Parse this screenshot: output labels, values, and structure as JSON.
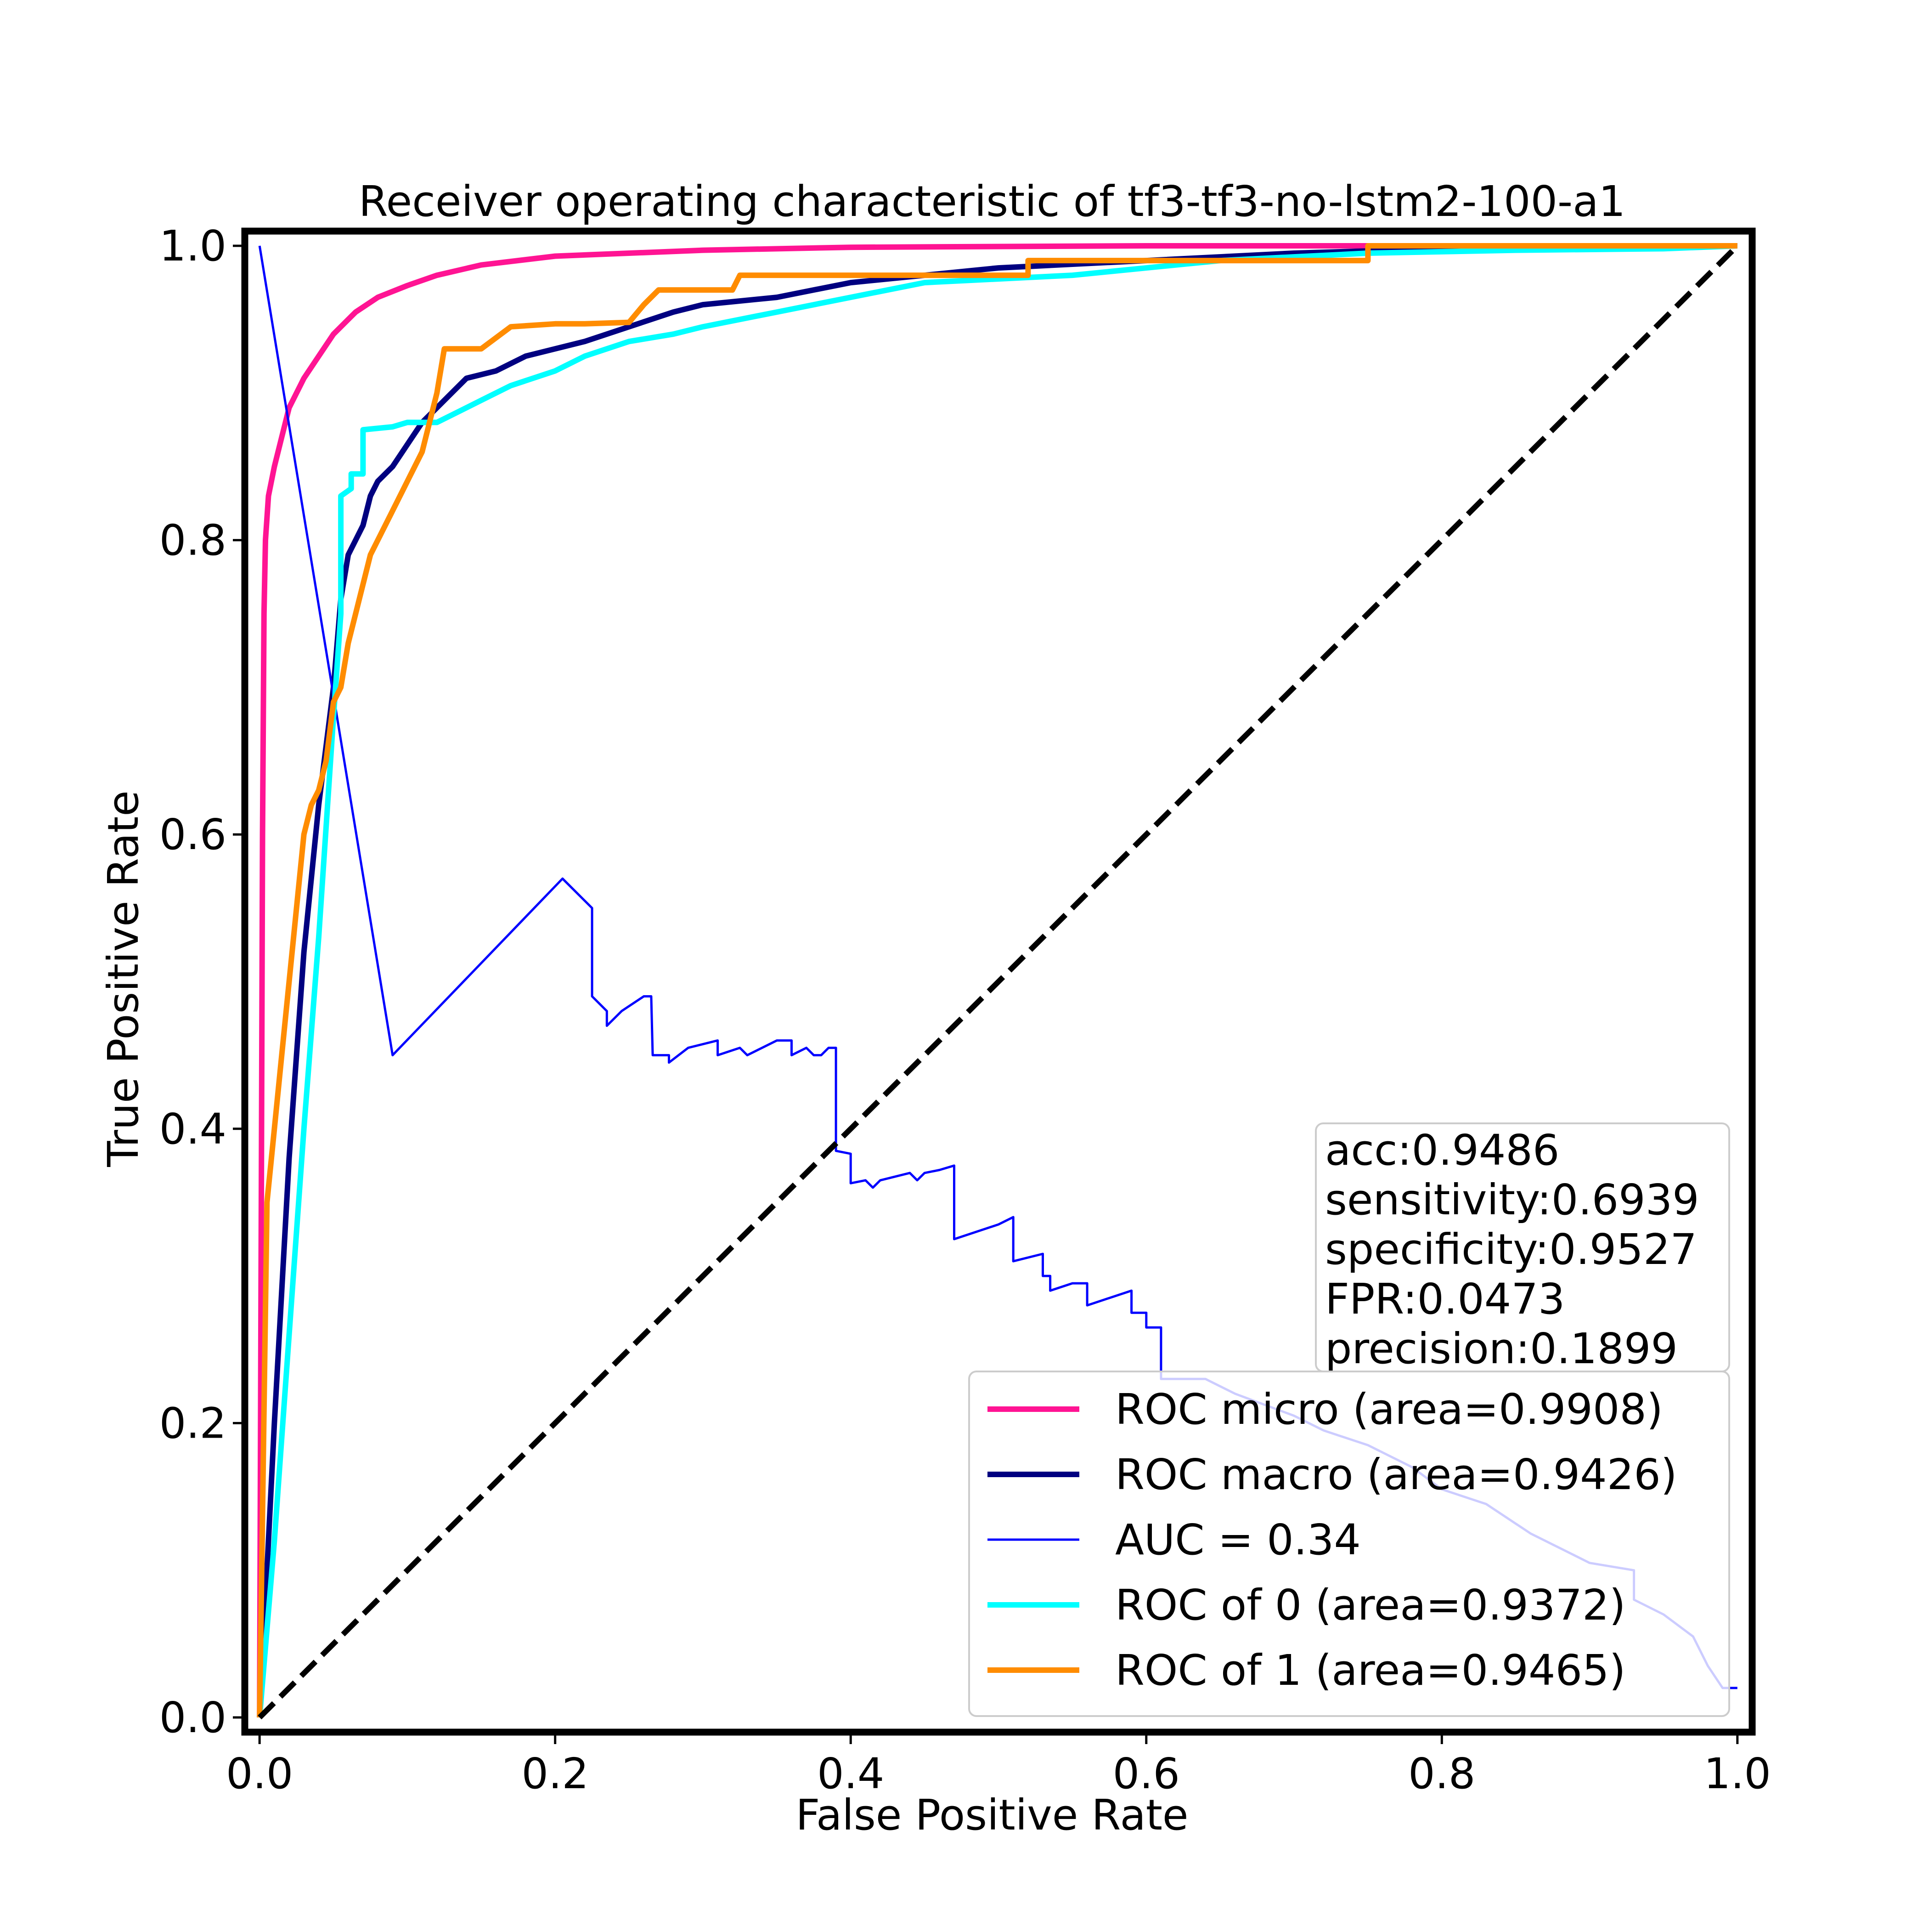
{
  "chart_data": {
    "type": "line",
    "title": "Receiver operating characteristic of tf3-tf3-no-lstm2-100-a1",
    "xlabel": "False Positive Rate",
    "ylabel": "True Positive Rate",
    "xlim": [
      -0.01,
      1.01
    ],
    "ylim": [
      -0.01,
      1.01
    ],
    "xticks": [
      {
        "value": 0.0,
        "label": "0.0"
      },
      {
        "value": 0.2,
        "label": "0.2"
      },
      {
        "value": 0.4,
        "label": "0.4"
      },
      {
        "value": 0.6,
        "label": "0.6"
      },
      {
        "value": 0.8,
        "label": "0.8"
      },
      {
        "value": 1.0,
        "label": "1.0"
      }
    ],
    "yticks": [
      {
        "value": 0.0,
        "label": "0.0"
      },
      {
        "value": 0.2,
        "label": "0.2"
      },
      {
        "value": 0.4,
        "label": "0.4"
      },
      {
        "value": 0.6,
        "label": "0.6"
      },
      {
        "value": 0.8,
        "label": "0.8"
      },
      {
        "value": 1.0,
        "label": "1.0"
      }
    ],
    "grid": false,
    "legend_position": "lower-right",
    "series": [
      {
        "name": "ROC micro (area=0.9908)",
        "color": "#ff1493",
        "style": "thick",
        "points": [
          [
            0,
            0
          ],
          [
            0.001,
            0.3
          ],
          [
            0.002,
            0.6
          ],
          [
            0.003,
            0.75
          ],
          [
            0.004,
            0.8
          ],
          [
            0.006,
            0.83
          ],
          [
            0.01,
            0.85
          ],
          [
            0.015,
            0.87
          ],
          [
            0.02,
            0.89
          ],
          [
            0.03,
            0.91
          ],
          [
            0.04,
            0.925
          ],
          [
            0.05,
            0.94
          ],
          [
            0.065,
            0.955
          ],
          [
            0.08,
            0.965
          ],
          [
            0.1,
            0.973
          ],
          [
            0.12,
            0.98
          ],
          [
            0.15,
            0.987
          ],
          [
            0.2,
            0.993
          ],
          [
            0.3,
            0.997
          ],
          [
            0.4,
            0.999
          ],
          [
            0.6,
            1.0
          ],
          [
            1.0,
            1.0
          ]
        ]
      },
      {
        "name": "ROC macro (area=0.9426)",
        "color": "#000080",
        "style": "thick",
        "points": [
          [
            0,
            0
          ],
          [
            0.01,
            0.2
          ],
          [
            0.02,
            0.38
          ],
          [
            0.03,
            0.52
          ],
          [
            0.04,
            0.62
          ],
          [
            0.05,
            0.7
          ],
          [
            0.055,
            0.76
          ],
          [
            0.06,
            0.79
          ],
          [
            0.07,
            0.81
          ],
          [
            0.075,
            0.83
          ],
          [
            0.08,
            0.84
          ],
          [
            0.09,
            0.85
          ],
          [
            0.1,
            0.865
          ],
          [
            0.11,
            0.88
          ],
          [
            0.12,
            0.89
          ],
          [
            0.13,
            0.9
          ],
          [
            0.14,
            0.91
          ],
          [
            0.16,
            0.915
          ],
          [
            0.18,
            0.925
          ],
          [
            0.2,
            0.93
          ],
          [
            0.22,
            0.935
          ],
          [
            0.25,
            0.945
          ],
          [
            0.28,
            0.955
          ],
          [
            0.3,
            0.96
          ],
          [
            0.35,
            0.965
          ],
          [
            0.4,
            0.975
          ],
          [
            0.5,
            0.985
          ],
          [
            0.6,
            0.99
          ],
          [
            0.7,
            0.995
          ],
          [
            0.8,
            0.998
          ],
          [
            1.0,
            1.0
          ]
        ]
      },
      {
        "name": "AUC = 0.34",
        "color": "#0000ff",
        "style": "thin",
        "points": [
          [
            0.0,
            1.0
          ],
          [
            0.09,
            0.45
          ],
          [
            0.205,
            0.57
          ],
          [
            0.225,
            0.55
          ],
          [
            0.225,
            0.49
          ],
          [
            0.235,
            0.48
          ],
          [
            0.235,
            0.47
          ],
          [
            0.245,
            0.48
          ],
          [
            0.26,
            0.49
          ],
          [
            0.265,
            0.49
          ],
          [
            0.266,
            0.45
          ],
          [
            0.277,
            0.45
          ],
          [
            0.277,
            0.445
          ],
          [
            0.29,
            0.455
          ],
          [
            0.31,
            0.46
          ],
          [
            0.31,
            0.45
          ],
          [
            0.325,
            0.455
          ],
          [
            0.33,
            0.45
          ],
          [
            0.34,
            0.455
          ],
          [
            0.35,
            0.46
          ],
          [
            0.36,
            0.46
          ],
          [
            0.36,
            0.45
          ],
          [
            0.37,
            0.455
          ],
          [
            0.375,
            0.45
          ],
          [
            0.38,
            0.45
          ],
          [
            0.385,
            0.455
          ],
          [
            0.39,
            0.455
          ],
          [
            0.39,
            0.385
          ],
          [
            0.4,
            0.383
          ],
          [
            0.4,
            0.363
          ],
          [
            0.41,
            0.365
          ],
          [
            0.415,
            0.36
          ],
          [
            0.42,
            0.365
          ],
          [
            0.44,
            0.37
          ],
          [
            0.445,
            0.365
          ],
          [
            0.45,
            0.37
          ],
          [
            0.46,
            0.372
          ],
          [
            0.47,
            0.375
          ],
          [
            0.47,
            0.325
          ],
          [
            0.5,
            0.335
          ],
          [
            0.51,
            0.34
          ],
          [
            0.51,
            0.31
          ],
          [
            0.53,
            0.315
          ],
          [
            0.53,
            0.3
          ],
          [
            0.535,
            0.3
          ],
          [
            0.535,
            0.29
          ],
          [
            0.55,
            0.295
          ],
          [
            0.56,
            0.295
          ],
          [
            0.56,
            0.28
          ],
          [
            0.59,
            0.29
          ],
          [
            0.59,
            0.275
          ],
          [
            0.6,
            0.275
          ],
          [
            0.6,
            0.265
          ],
          [
            0.61,
            0.265
          ],
          [
            0.61,
            0.23
          ],
          [
            0.64,
            0.23
          ],
          [
            0.66,
            0.22
          ],
          [
            0.7,
            0.205
          ],
          [
            0.72,
            0.195
          ],
          [
            0.75,
            0.185
          ],
          [
            0.78,
            0.17
          ],
          [
            0.8,
            0.155
          ],
          [
            0.83,
            0.145
          ],
          [
            0.86,
            0.125
          ],
          [
            0.88,
            0.115
          ],
          [
            0.9,
            0.105
          ],
          [
            0.93,
            0.1
          ],
          [
            0.93,
            0.08
          ],
          [
            0.95,
            0.07
          ],
          [
            0.97,
            0.055
          ],
          [
            0.98,
            0.035
          ],
          [
            0.99,
            0.02
          ],
          [
            1.0,
            0.02
          ]
        ]
      },
      {
        "name": "ROC of 0 (area=0.9372)",
        "color": "#00ffff",
        "style": "thick",
        "points": [
          [
            0,
            0
          ],
          [
            0.01,
            0.12
          ],
          [
            0.02,
            0.26
          ],
          [
            0.03,
            0.4
          ],
          [
            0.04,
            0.53
          ],
          [
            0.05,
            0.68
          ],
          [
            0.055,
            0.75
          ],
          [
            0.055,
            0.83
          ],
          [
            0.062,
            0.835
          ],
          [
            0.062,
            0.845
          ],
          [
            0.07,
            0.845
          ],
          [
            0.07,
            0.875
          ],
          [
            0.09,
            0.877
          ],
          [
            0.1,
            0.88
          ],
          [
            0.12,
            0.88
          ],
          [
            0.13,
            0.885
          ],
          [
            0.15,
            0.895
          ],
          [
            0.17,
            0.905
          ],
          [
            0.2,
            0.915
          ],
          [
            0.22,
            0.925
          ],
          [
            0.25,
            0.935
          ],
          [
            0.28,
            0.94
          ],
          [
            0.3,
            0.945
          ],
          [
            0.35,
            0.955
          ],
          [
            0.4,
            0.965
          ],
          [
            0.45,
            0.975
          ],
          [
            0.55,
            0.98
          ],
          [
            0.65,
            0.99
          ],
          [
            0.75,
            0.995
          ],
          [
            0.85,
            0.997
          ],
          [
            0.95,
            0.998
          ],
          [
            1.0,
            1.0
          ]
        ]
      },
      {
        "name": "ROC of 1 (area=0.9465)",
        "color": "#ff8c00",
        "style": "thick",
        "points": [
          [
            0,
            0
          ],
          [
            0.005,
            0.35
          ],
          [
            0.01,
            0.4
          ],
          [
            0.015,
            0.45
          ],
          [
            0.02,
            0.5
          ],
          [
            0.025,
            0.55
          ],
          [
            0.03,
            0.6
          ],
          [
            0.035,
            0.62
          ],
          [
            0.04,
            0.63
          ],
          [
            0.045,
            0.65
          ],
          [
            0.05,
            0.69
          ],
          [
            0.055,
            0.7
          ],
          [
            0.06,
            0.73
          ],
          [
            0.065,
            0.75
          ],
          [
            0.07,
            0.77
          ],
          [
            0.075,
            0.79
          ],
          [
            0.08,
            0.8
          ],
          [
            0.085,
            0.81
          ],
          [
            0.09,
            0.82
          ],
          [
            0.1,
            0.84
          ],
          [
            0.11,
            0.86
          ],
          [
            0.115,
            0.88
          ],
          [
            0.12,
            0.9
          ],
          [
            0.125,
            0.93
          ],
          [
            0.15,
            0.93
          ],
          [
            0.17,
            0.945
          ],
          [
            0.2,
            0.947
          ],
          [
            0.22,
            0.947
          ],
          [
            0.25,
            0.948
          ],
          [
            0.26,
            0.96
          ],
          [
            0.27,
            0.97
          ],
          [
            0.3,
            0.97
          ],
          [
            0.32,
            0.97
          ],
          [
            0.325,
            0.98
          ],
          [
            0.4,
            0.98
          ],
          [
            0.45,
            0.98
          ],
          [
            0.52,
            0.98
          ],
          [
            0.52,
            0.99
          ],
          [
            0.6,
            0.99
          ],
          [
            0.7,
            0.99
          ],
          [
            0.75,
            0.99
          ],
          [
            0.75,
            1.0
          ],
          [
            0.9,
            1.0
          ],
          [
            1.0,
            1.0
          ]
        ]
      },
      {
        "name": "",
        "color": "#000000",
        "style": "dashed",
        "points": [
          [
            0,
            0
          ],
          [
            1,
            1
          ]
        ]
      }
    ],
    "metrics_box": [
      "acc:0.9486",
      "sensitivity:0.6939",
      "specificity:0.9527",
      "FPR:0.0473",
      "precision:0.1899"
    ]
  }
}
